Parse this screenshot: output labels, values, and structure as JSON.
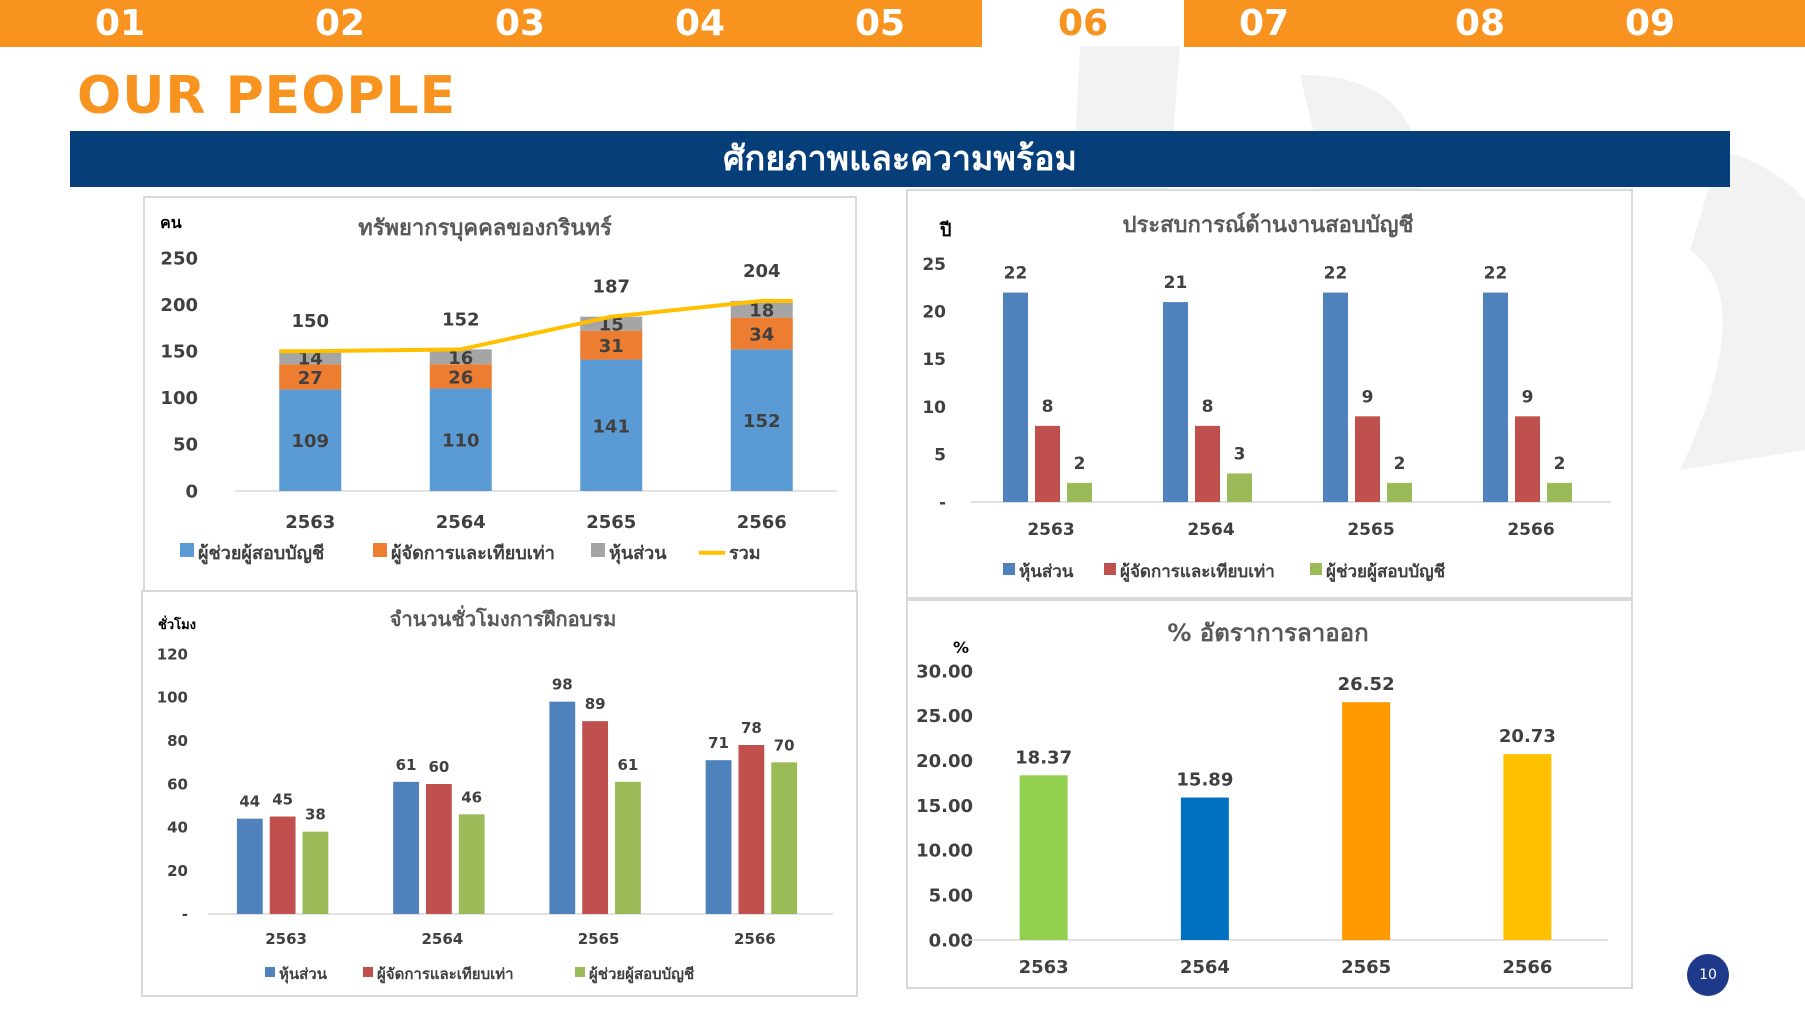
{
  "tabs": [
    "01",
    "02",
    "03",
    "04",
    "05",
    "06",
    "07",
    "08",
    "09"
  ],
  "page_title": "OUR PEOPLE",
  "banner": "ศักยภาพและความพร้อม",
  "page_number": "10",
  "colors": {
    "orange": "#f7931e",
    "navy": "#063e7a"
  },
  "chart_data": [
    {
      "type": "bar",
      "title": "ทรัพยากรบุคคลของกรินทร์",
      "ylabel": "คน",
      "categories": [
        "2563",
        "2564",
        "2565",
        "2566"
      ],
      "yticks": [
        "0",
        "50",
        "100",
        "150",
        "200",
        "250"
      ],
      "ylim": [
        0,
        250
      ],
      "stacked": true,
      "series": [
        {
          "name": "ผู้ช่วยผู้สอบบัญชี",
          "values": [
            109,
            110,
            141,
            152
          ],
          "color": "#5b9bd5"
        },
        {
          "name": "ผู้จัดการและเทียบเท่า",
          "values": [
            27,
            26,
            31,
            34
          ],
          "color": "#ed7d31"
        },
        {
          "name": "หุ้นส่วน",
          "values": [
            14,
            16,
            15,
            18
          ],
          "color": "#a5a5a5"
        },
        {
          "name": "รวม",
          "values": [
            150,
            152,
            187,
            204
          ],
          "color": "#ffc000",
          "kind": "line"
        }
      ],
      "legend": "bottom"
    },
    {
      "type": "bar",
      "title": "ประสบการณ์ด้านงานสอบบัญชี",
      "ylabel": "ปี",
      "categories": [
        "2563",
        "2564",
        "2565",
        "2566"
      ],
      "yticks": [
        "-",
        "5",
        "10",
        "15",
        "20",
        "25"
      ],
      "ylim": [
        0,
        25
      ],
      "series": [
        {
          "name": "หุ้นส่วน",
          "values": [
            22,
            21,
            22,
            22
          ],
          "color": "#4f81bd"
        },
        {
          "name": "ผู้จัดการและเทียบเท่า",
          "values": [
            8,
            8,
            9,
            9
          ],
          "color": "#c0504d"
        },
        {
          "name": "ผู้ช่วยผู้สอบบัญชี",
          "values": [
            2,
            3,
            2,
            2
          ],
          "color": "#9bbb59"
        }
      ],
      "legend": "bottom"
    },
    {
      "type": "bar",
      "title": "จำนวนชั่วโมงการฝึกอบรม",
      "ylabel": "ชั่วโมง",
      "categories": [
        "2563",
        "2564",
        "2565",
        "2566"
      ],
      "yticks": [
        "-",
        "20",
        "40",
        "60",
        "80",
        "100",
        "120"
      ],
      "ylim": [
        0,
        120
      ],
      "series": [
        {
          "name": "หุ้นส่วน",
          "values": [
            44,
            61,
            98,
            71
          ],
          "color": "#4f81bd"
        },
        {
          "name": "ผู้จัดการและเทียบเท่า",
          "values": [
            45,
            60,
            89,
            78
          ],
          "color": "#c0504d"
        },
        {
          "name": "ผู้ช่วยผู้สอบบัญชี",
          "values": [
            38,
            46,
            61,
            70
          ],
          "color": "#9bbb59"
        }
      ],
      "legend": "bottom"
    },
    {
      "type": "bar",
      "title": "% อัตราการลาออก",
      "ylabel": "%",
      "categories": [
        "2563",
        "2564",
        "2565",
        "2566"
      ],
      "yticks": [
        "0.00",
        "5.00",
        "10.00",
        "15.00",
        "20.00",
        "25.00",
        "30.00"
      ],
      "ylim": [
        0,
        30
      ],
      "values": [
        18.37,
        15.89,
        26.52,
        20.73
      ],
      "labels": [
        "18.37",
        "15.89",
        "26.52",
        "20.73"
      ],
      "bar_colors": [
        "#92d050",
        "#0070c0",
        "#ff9900",
        "#ffc000"
      ],
      "legend": "none"
    }
  ]
}
